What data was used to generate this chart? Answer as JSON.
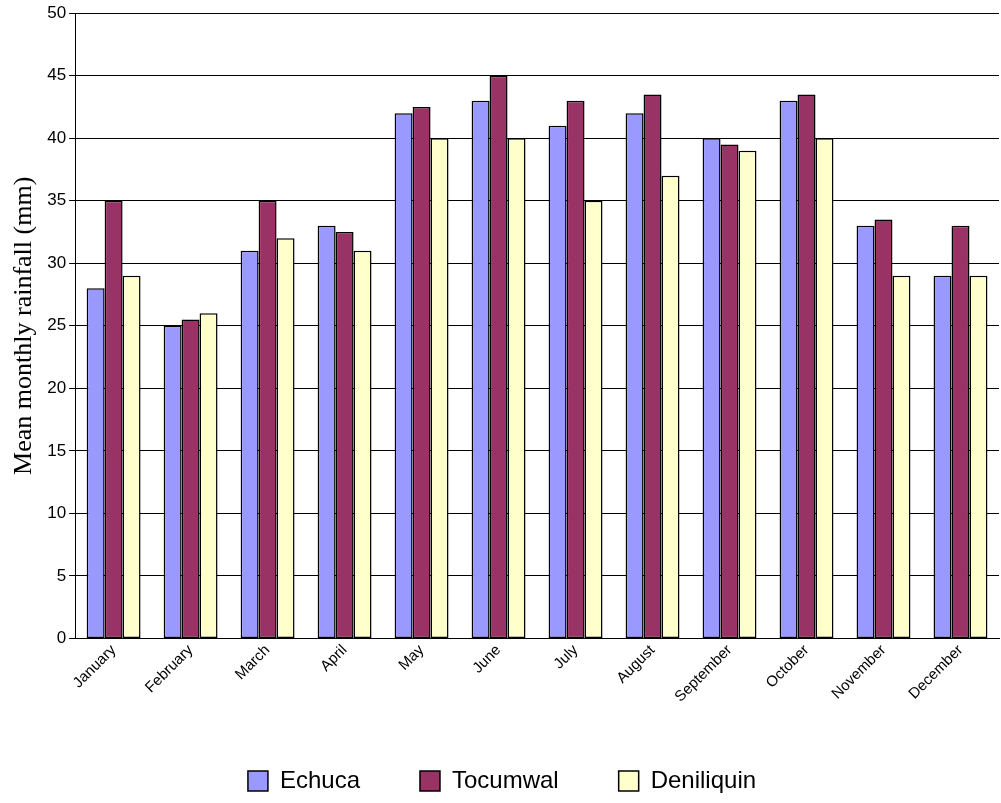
{
  "chart_data": {
    "type": "bar",
    "ylabel": "Mean monthly rainfall (mm)",
    "categories": [
      "January",
      "February",
      "March",
      "April",
      "May",
      "June",
      "July",
      "August",
      "September",
      "October",
      "November",
      "December"
    ],
    "series": [
      {
        "name": "Echuca",
        "color": "#9999ff",
        "values": [
          28,
          25,
          31,
          33,
          42,
          43,
          41,
          42,
          40,
          43,
          33,
          29
        ]
      },
      {
        "name": "Tocumwal",
        "color": "#993366",
        "values": [
          35,
          25.5,
          35,
          32.5,
          42.5,
          45,
          43,
          43.5,
          39.5,
          43.5,
          33.5,
          33
        ]
      },
      {
        "name": "Deniliquin",
        "color": "#ffffcc",
        "values": [
          29,
          26,
          32,
          31,
          40,
          40,
          35,
          37,
          39,
          40,
          29,
          29
        ]
      }
    ],
    "ylim": [
      0,
      50
    ],
    "yticks": [
      0,
      5,
      10,
      15,
      20,
      25,
      30,
      35,
      40,
      45,
      50
    ],
    "grid": "y",
    "legend": "bottom"
  }
}
